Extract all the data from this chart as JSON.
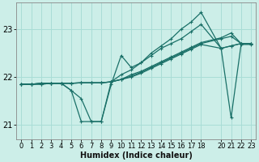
{
  "title": "",
  "xlabel": "Humidex (Indice chaleur)",
  "ylabel": "",
  "bg_color": "#cceee8",
  "grid_color": "#a8ddd6",
  "line_color": "#1a7068",
  "xlim": [
    -0.5,
    23.5
  ],
  "ylim": [
    20.7,
    23.55
  ],
  "yticks": [
    21,
    22,
    23
  ],
  "xticks": [
    0,
    1,
    2,
    3,
    4,
    5,
    6,
    7,
    8,
    9,
    10,
    11,
    12,
    13,
    14,
    15,
    16,
    17,
    18,
    20,
    21,
    22,
    23
  ],
  "series": [
    {
      "x": [
        0,
        1,
        2,
        3,
        4,
        5,
        6,
        7,
        8,
        9,
        10,
        11,
        12,
        13,
        14,
        15,
        16,
        17,
        18,
        20,
        21,
        22,
        23
      ],
      "y": [
        21.85,
        21.85,
        21.85,
        21.87,
        21.87,
        21.72,
        21.07,
        21.07,
        21.07,
        21.9,
        22.05,
        22.15,
        22.3,
        22.5,
        22.65,
        22.8,
        23.0,
        23.15,
        23.35,
        22.6,
        22.65,
        22.7,
        22.7
      ]
    },
    {
      "x": [
        0,
        1,
        2,
        3,
        4,
        5,
        6,
        7,
        8,
        9,
        10,
        11,
        12,
        13,
        14,
        15,
        16,
        17,
        18,
        20,
        21,
        22,
        23
      ],
      "y": [
        21.85,
        21.85,
        21.85,
        21.87,
        21.87,
        21.72,
        21.55,
        21.07,
        21.07,
        21.85,
        22.45,
        22.2,
        22.3,
        22.45,
        22.6,
        22.7,
        22.8,
        22.95,
        23.1,
        22.6,
        22.65,
        22.7,
        22.7
      ]
    },
    {
      "x": [
        0,
        1,
        2,
        3,
        4,
        5,
        6,
        7,
        8,
        9,
        10,
        11,
        12,
        13,
        14,
        15,
        16,
        17,
        18,
        20,
        21,
        22,
        23
      ],
      "y": [
        21.85,
        21.85,
        21.87,
        21.87,
        21.87,
        21.87,
        21.88,
        21.88,
        21.88,
        21.9,
        21.95,
        22.05,
        22.12,
        22.22,
        22.32,
        22.42,
        22.52,
        22.62,
        22.72,
        22.82,
        22.92,
        22.7,
        22.7
      ]
    },
    {
      "x": [
        0,
        1,
        2,
        3,
        4,
        5,
        6,
        7,
        8,
        9,
        10,
        11,
        12,
        13,
        14,
        15,
        16,
        17,
        18,
        20,
        21,
        22,
        23
      ],
      "y": [
        21.85,
        21.85,
        21.87,
        21.87,
        21.87,
        21.87,
        21.88,
        21.88,
        21.88,
        21.9,
        21.95,
        22.02,
        22.1,
        22.2,
        22.3,
        22.4,
        22.5,
        22.6,
        22.7,
        22.8,
        22.85,
        22.7,
        22.7
      ]
    },
    {
      "x": [
        0,
        1,
        2,
        3,
        4,
        5,
        6,
        7,
        8,
        9,
        10,
        11,
        12,
        13,
        14,
        15,
        16,
        17,
        18,
        20,
        21,
        22,
        23
      ],
      "y": [
        21.85,
        21.85,
        21.87,
        21.87,
        21.87,
        21.87,
        21.88,
        21.88,
        21.88,
        21.9,
        21.95,
        22.0,
        22.08,
        22.18,
        22.28,
        22.38,
        22.48,
        22.58,
        22.68,
        22.6,
        21.15,
        22.68,
        22.68
      ]
    }
  ]
}
